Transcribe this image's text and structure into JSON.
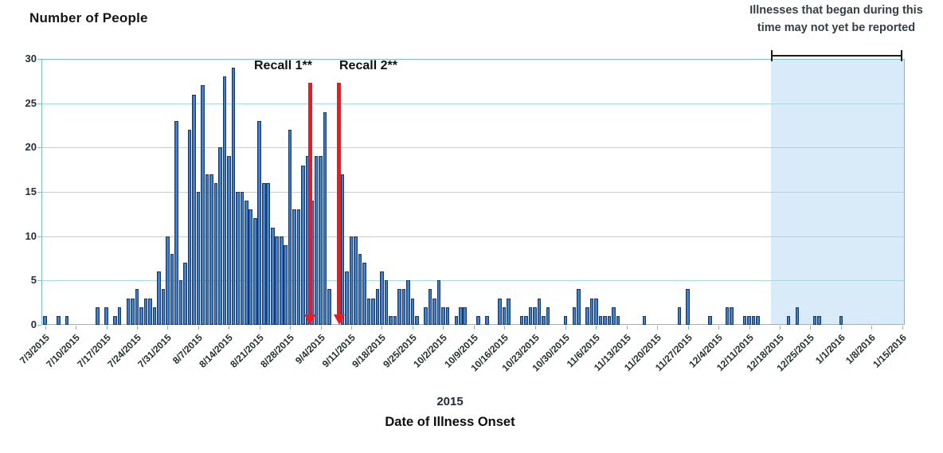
{
  "chart_data": {
    "type": "bar",
    "title": "Number of People",
    "xlabel": "Date of Illness Onset",
    "x_axis_year_label": "2015",
    "ylabel_ticks": [
      0,
      5,
      10,
      15,
      20,
      25,
      30
    ],
    "ylim": [
      0,
      30
    ],
    "grid": true,
    "x_start_date": "7/3/2015",
    "x_span_days": 197.5,
    "x_tick_labels": [
      "7/3/2015",
      "7/10/2015",
      "7/17/2015",
      "7/24/2015",
      "7/31/2015",
      "8/7/2015",
      "8/14/2015",
      "8/21/2015",
      "8/28/2015",
      "9/4/2015",
      "9/11/2015",
      "9/18/2015",
      "9/25/2015",
      "10/2/2015",
      "10/9/2015",
      "10/16/2015",
      "10/23/2015",
      "10/30/2015",
      "11/6/2015",
      "11/13/2015",
      "11/20/2015",
      "11/27/2015",
      "12/4/2015",
      "12/11/2015",
      "12/18/2015",
      "12/25/2015",
      "1/1/2016",
      "1/8/2016",
      "1/15/2016"
    ],
    "colors": {
      "bar_fill": "#3a74c4",
      "bar_border": "#163a62",
      "grid": "#a9d8da",
      "frame": "#74c2c6",
      "recall_line": "#f0191f",
      "shaded_region": "#d9eaf8",
      "note_text": "#333f40"
    },
    "cases": [
      {
        "date": "7/3/2015",
        "count": 1
      },
      {
        "date": "7/6/2015",
        "count": 1
      },
      {
        "date": "7/8/2015",
        "count": 1
      },
      {
        "date": "7/15/2015",
        "count": 2
      },
      {
        "date": "7/17/2015",
        "count": 2
      },
      {
        "date": "7/19/2015",
        "count": 1
      },
      {
        "date": "7/20/2015",
        "count": 2
      },
      {
        "date": "7/22/2015",
        "count": 3
      },
      {
        "date": "7/23/2015",
        "count": 3
      },
      {
        "date": "7/24/2015",
        "count": 4
      },
      {
        "date": "7/25/2015",
        "count": 2
      },
      {
        "date": "7/26/2015",
        "count": 3
      },
      {
        "date": "7/27/2015",
        "count": 3
      },
      {
        "date": "7/28/2015",
        "count": 2
      },
      {
        "date": "7/29/2015",
        "count": 6
      },
      {
        "date": "7/30/2015",
        "count": 4
      },
      {
        "date": "7/31/2015",
        "count": 10
      },
      {
        "date": "8/1/2015",
        "count": 8
      },
      {
        "date": "8/2/2015",
        "count": 23
      },
      {
        "date": "8/3/2015",
        "count": 5
      },
      {
        "date": "8/4/2015",
        "count": 7
      },
      {
        "date": "8/5/2015",
        "count": 22
      },
      {
        "date": "8/6/2015",
        "count": 26
      },
      {
        "date": "8/7/2015",
        "count": 15
      },
      {
        "date": "8/8/2015",
        "count": 27
      },
      {
        "date": "8/9/2015",
        "count": 17
      },
      {
        "date": "8/10/2015",
        "count": 17
      },
      {
        "date": "8/11/2015",
        "count": 16
      },
      {
        "date": "8/12/2015",
        "count": 20
      },
      {
        "date": "8/13/2015",
        "count": 28
      },
      {
        "date": "8/14/2015",
        "count": 19
      },
      {
        "date": "8/15/2015",
        "count": 29
      },
      {
        "date": "8/16/2015",
        "count": 15
      },
      {
        "date": "8/17/2015",
        "count": 15
      },
      {
        "date": "8/18/2015",
        "count": 14
      },
      {
        "date": "8/19/2015",
        "count": 13
      },
      {
        "date": "8/20/2015",
        "count": 12
      },
      {
        "date": "8/21/2015",
        "count": 23
      },
      {
        "date": "8/22/2015",
        "count": 16
      },
      {
        "date": "8/23/2015",
        "count": 16
      },
      {
        "date": "8/24/2015",
        "count": 11
      },
      {
        "date": "8/25/2015",
        "count": 10
      },
      {
        "date": "8/26/2015",
        "count": 10
      },
      {
        "date": "8/27/2015",
        "count": 9
      },
      {
        "date": "8/28/2015",
        "count": 22
      },
      {
        "date": "8/29/2015",
        "count": 13
      },
      {
        "date": "8/30/2015",
        "count": 13
      },
      {
        "date": "8/31/2015",
        "count": 18
      },
      {
        "date": "9/1/2015",
        "count": 19
      },
      {
        "date": "9/2/2015",
        "count": 14
      },
      {
        "date": "9/3/2015",
        "count": 19
      },
      {
        "date": "9/4/2015",
        "count": 19
      },
      {
        "date": "9/5/2015",
        "count": 24
      },
      {
        "date": "9/6/2015",
        "count": 4
      },
      {
        "date": "9/9/2015",
        "count": 17
      },
      {
        "date": "9/10/2015",
        "count": 6
      },
      {
        "date": "9/11/2015",
        "count": 10
      },
      {
        "date": "9/12/2015",
        "count": 10
      },
      {
        "date": "9/13/2015",
        "count": 8
      },
      {
        "date": "9/14/2015",
        "count": 7
      },
      {
        "date": "9/15/2015",
        "count": 3
      },
      {
        "date": "9/16/2015",
        "count": 3
      },
      {
        "date": "9/17/2015",
        "count": 4
      },
      {
        "date": "9/18/2015",
        "count": 6
      },
      {
        "date": "9/19/2015",
        "count": 5
      },
      {
        "date": "9/20/2015",
        "count": 1
      },
      {
        "date": "9/21/2015",
        "count": 1
      },
      {
        "date": "9/22/2015",
        "count": 4
      },
      {
        "date": "9/23/2015",
        "count": 4
      },
      {
        "date": "9/24/2015",
        "count": 5
      },
      {
        "date": "9/25/2015",
        "count": 3
      },
      {
        "date": "9/26/2015",
        "count": 1
      },
      {
        "date": "9/28/2015",
        "count": 2
      },
      {
        "date": "9/29/2015",
        "count": 4
      },
      {
        "date": "9/30/2015",
        "count": 3
      },
      {
        "date": "10/1/2015",
        "count": 5
      },
      {
        "date": "10/2/2015",
        "count": 2
      },
      {
        "date": "10/3/2015",
        "count": 2
      },
      {
        "date": "10/5/2015",
        "count": 1
      },
      {
        "date": "10/6/2015",
        "count": 2
      },
      {
        "date": "10/7/2015",
        "count": 2
      },
      {
        "date": "10/10/2015",
        "count": 1
      },
      {
        "date": "10/12/2015",
        "count": 1
      },
      {
        "date": "10/15/2015",
        "count": 3
      },
      {
        "date": "10/16/2015",
        "count": 2
      },
      {
        "date": "10/17/2015",
        "count": 3
      },
      {
        "date": "10/20/2015",
        "count": 1
      },
      {
        "date": "10/21/2015",
        "count": 1
      },
      {
        "date": "10/22/2015",
        "count": 2
      },
      {
        "date": "10/23/2015",
        "count": 2
      },
      {
        "date": "10/24/2015",
        "count": 3
      },
      {
        "date": "10/25/2015",
        "count": 1
      },
      {
        "date": "10/26/2015",
        "count": 2
      },
      {
        "date": "10/30/2015",
        "count": 1
      },
      {
        "date": "11/1/2015",
        "count": 2
      },
      {
        "date": "11/2/2015",
        "count": 4
      },
      {
        "date": "11/4/2015",
        "count": 2
      },
      {
        "date": "11/5/2015",
        "count": 3
      },
      {
        "date": "11/6/2015",
        "count": 3
      },
      {
        "date": "11/7/2015",
        "count": 1
      },
      {
        "date": "11/8/2015",
        "count": 1
      },
      {
        "date": "11/9/2015",
        "count": 1
      },
      {
        "date": "11/10/2015",
        "count": 2
      },
      {
        "date": "11/11/2015",
        "count": 1
      },
      {
        "date": "11/17/2015",
        "count": 1
      },
      {
        "date": "11/25/2015",
        "count": 2
      },
      {
        "date": "11/27/2015",
        "count": 4
      },
      {
        "date": "12/2/2015",
        "count": 1
      },
      {
        "date": "12/6/2015",
        "count": 2
      },
      {
        "date": "12/7/2015",
        "count": 2
      },
      {
        "date": "12/10/2015",
        "count": 1
      },
      {
        "date": "12/11/2015",
        "count": 1
      },
      {
        "date": "12/12/2015",
        "count": 1
      },
      {
        "date": "12/13/2015",
        "count": 1
      },
      {
        "date": "12/20/2015",
        "count": 1
      },
      {
        "date": "12/22/2015",
        "count": 2
      },
      {
        "date": "12/26/2015",
        "count": 1
      },
      {
        "date": "12/27/2015",
        "count": 1
      },
      {
        "date": "1/1/2016",
        "count": 1
      }
    ],
    "annotations": {
      "recalls": [
        {
          "label": "Recall 1**",
          "day_offset": 61.1
        },
        {
          "label": "Recall 2**",
          "day_offset": 67.7
        }
      ],
      "unreported_note": {
        "line1": "Illnesses that began during this",
        "line2": "time may not yet be reported",
        "start_day_offset": 166.5
      }
    }
  }
}
